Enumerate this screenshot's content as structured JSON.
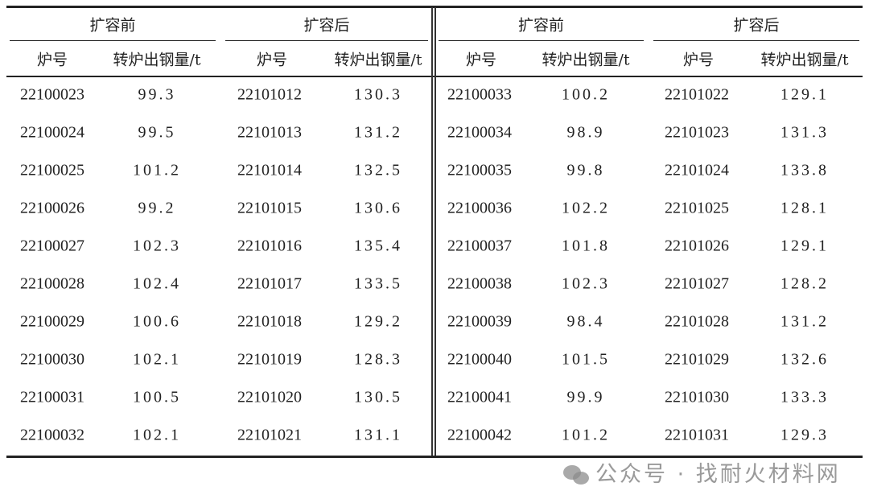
{
  "table": {
    "groups": [
      {
        "title": "扩容前",
        "col_id": "炉号",
        "col_val": "转炉出钢量/t",
        "rows": [
          [
            "22100023",
            "99.3"
          ],
          [
            "22100024",
            "99.5"
          ],
          [
            "22100025",
            "101.2"
          ],
          [
            "22100026",
            "99.2"
          ],
          [
            "22100027",
            "102.3"
          ],
          [
            "22100028",
            "102.4"
          ],
          [
            "22100029",
            "100.6"
          ],
          [
            "22100030",
            "102.1"
          ],
          [
            "22100031",
            "100.5"
          ],
          [
            "22100032",
            "102.1"
          ]
        ]
      },
      {
        "title": "扩容后",
        "col_id": "炉号",
        "col_val": "转炉出钢量/t",
        "rows": [
          [
            "22101012",
            "130.3"
          ],
          [
            "22101013",
            "131.2"
          ],
          [
            "22101014",
            "132.5"
          ],
          [
            "22101015",
            "130.6"
          ],
          [
            "22101016",
            "135.4"
          ],
          [
            "22101017",
            "133.5"
          ],
          [
            "22101018",
            "129.2"
          ],
          [
            "22101019",
            "128.3"
          ],
          [
            "22101020",
            "130.5"
          ],
          [
            "22101021",
            "131.1"
          ]
        ]
      },
      {
        "title": "扩容前",
        "col_id": "炉号",
        "col_val": "转炉出钢量/t",
        "rows": [
          [
            "22100033",
            "100.2"
          ],
          [
            "22100034",
            "98.9"
          ],
          [
            "22100035",
            "99.8"
          ],
          [
            "22100036",
            "102.2"
          ],
          [
            "22100037",
            "101.8"
          ],
          [
            "22100038",
            "102.3"
          ],
          [
            "22100039",
            "98.4"
          ],
          [
            "22100040",
            "101.5"
          ],
          [
            "22100041",
            "99.9"
          ],
          [
            "22100042",
            "101.2"
          ]
        ]
      },
      {
        "title": "扩容后",
        "col_id": "炉号",
        "col_val": "转炉出钢量/t",
        "rows": [
          [
            "22101022",
            "129.1"
          ],
          [
            "22101023",
            "131.3"
          ],
          [
            "22101024",
            "133.8"
          ],
          [
            "22101025",
            "128.1"
          ],
          [
            "22101026",
            "129.1"
          ],
          [
            "22101027",
            "128.2"
          ],
          [
            "22101028",
            "131.2"
          ],
          [
            "22101029",
            "132.6"
          ],
          [
            "22101030",
            "133.3"
          ],
          [
            "22101031",
            "129.3"
          ]
        ]
      }
    ]
  },
  "watermark": {
    "text": "公众号 · 找耐火材料网",
    "icon": "wechat-icon"
  }
}
